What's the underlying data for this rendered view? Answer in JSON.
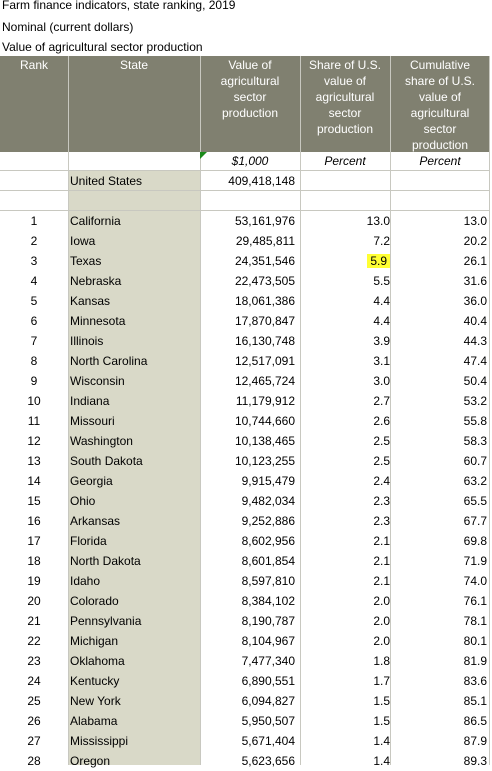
{
  "titles": [
    "Farm finance indicators, state ranking, 2019",
    "Nominal (current dollars)",
    "Value of agricultural sector production"
  ],
  "headers": {
    "rank": "Rank",
    "state": "State",
    "value": "Value of agricultural sector production",
    "share": "Share of U.S. value of agricultural sector production",
    "cumulative": "Cumulative share of U.S. value of agricultural sector production"
  },
  "units": {
    "value": "$1,000",
    "share": "Percent",
    "cumulative": "Percent"
  },
  "us_total": {
    "label": "United States",
    "value": "409,418,148"
  },
  "highlight_color": "#ffff33",
  "rows": [
    {
      "rank": "1",
      "state": "California",
      "value": "53,161,976",
      "share": "13.0",
      "cum": "13.0"
    },
    {
      "rank": "2",
      "state": "Iowa",
      "value": "29,485,811",
      "share": "7.2",
      "cum": "20.2"
    },
    {
      "rank": "3",
      "state": "Texas",
      "value": "24,351,546",
      "share": "5.9",
      "cum": "26.1",
      "highlight": true
    },
    {
      "rank": "4",
      "state": "Nebraska",
      "value": "22,473,505",
      "share": "5.5",
      "cum": "31.6"
    },
    {
      "rank": "5",
      "state": "Kansas",
      "value": "18,061,386",
      "share": "4.4",
      "cum": "36.0"
    },
    {
      "rank": "6",
      "state": "Minnesota",
      "value": "17,870,847",
      "share": "4.4",
      "cum": "40.4"
    },
    {
      "rank": "7",
      "state": "Illinois",
      "value": "16,130,748",
      "share": "3.9",
      "cum": "44.3"
    },
    {
      "rank": "8",
      "state": "North Carolina",
      "value": "12,517,091",
      "share": "3.1",
      "cum": "47.4"
    },
    {
      "rank": "9",
      "state": "Wisconsin",
      "value": "12,465,724",
      "share": "3.0",
      "cum": "50.4"
    },
    {
      "rank": "10",
      "state": "Indiana",
      "value": "11,179,912",
      "share": "2.7",
      "cum": "53.2"
    },
    {
      "rank": "11",
      "state": "Missouri",
      "value": "10,744,660",
      "share": "2.6",
      "cum": "55.8"
    },
    {
      "rank": "12",
      "state": "Washington",
      "value": "10,138,465",
      "share": "2.5",
      "cum": "58.3"
    },
    {
      "rank": "13",
      "state": "South Dakota",
      "value": "10,123,255",
      "share": "2.5",
      "cum": "60.7"
    },
    {
      "rank": "14",
      "state": "Georgia",
      "value": "9,915,479",
      "share": "2.4",
      "cum": "63.2"
    },
    {
      "rank": "15",
      "state": "Ohio",
      "value": "9,482,034",
      "share": "2.3",
      "cum": "65.5"
    },
    {
      "rank": "16",
      "state": "Arkansas",
      "value": "9,252,886",
      "share": "2.3",
      "cum": "67.7"
    },
    {
      "rank": "17",
      "state": "Florida",
      "value": "8,602,956",
      "share": "2.1",
      "cum": "69.8"
    },
    {
      "rank": "18",
      "state": "North Dakota",
      "value": "8,601,854",
      "share": "2.1",
      "cum": "71.9"
    },
    {
      "rank": "19",
      "state": "Idaho",
      "value": "8,597,810",
      "share": "2.1",
      "cum": "74.0"
    },
    {
      "rank": "20",
      "state": "Colorado",
      "value": "8,384,102",
      "share": "2.0",
      "cum": "76.1"
    },
    {
      "rank": "21",
      "state": "Pennsylvania",
      "value": "8,190,787",
      "share": "2.0",
      "cum": "78.1"
    },
    {
      "rank": "22",
      "state": "Michigan",
      "value": "8,104,967",
      "share": "2.0",
      "cum": "80.1"
    },
    {
      "rank": "23",
      "state": "Oklahoma",
      "value": "7,477,340",
      "share": "1.8",
      "cum": "81.9"
    },
    {
      "rank": "24",
      "state": "Kentucky",
      "value": "6,890,551",
      "share": "1.7",
      "cum": "83.6"
    },
    {
      "rank": "25",
      "state": "New York",
      "value": "6,094,827",
      "share": "1.5",
      "cum": "85.1"
    },
    {
      "rank": "26",
      "state": "Alabama",
      "value": "5,950,507",
      "share": "1.5",
      "cum": "86.5"
    },
    {
      "rank": "27",
      "state": "Mississippi",
      "value": "5,671,404",
      "share": "1.4",
      "cum": "87.9"
    },
    {
      "rank": "28",
      "state": "Oregon",
      "value": "5,623,656",
      "share": "1.4",
      "cum": "89.3"
    }
  ]
}
